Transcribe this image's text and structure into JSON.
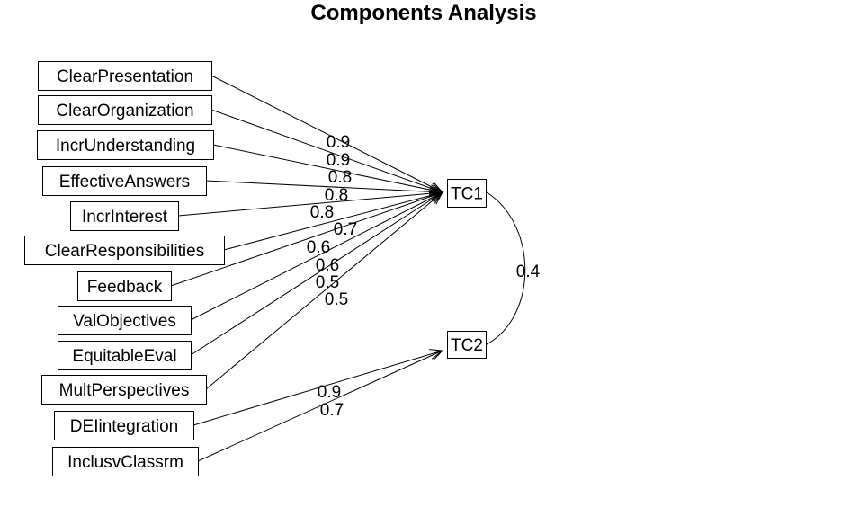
{
  "title": "Components Analysis",
  "components": [
    {
      "id": "TC1",
      "label": "TC1"
    },
    {
      "id": "TC2",
      "label": "TC2"
    }
  ],
  "variables": [
    {
      "label": "ClearPresentation",
      "component": "TC1",
      "loading": "0.9"
    },
    {
      "label": "ClearOrganization",
      "component": "TC1",
      "loading": "0.9"
    },
    {
      "label": "IncrUnderstanding",
      "component": "TC1",
      "loading": "0.8"
    },
    {
      "label": "EffectiveAnswers",
      "component": "TC1",
      "loading": "0.8"
    },
    {
      "label": "IncrInterest",
      "component": "TC1",
      "loading": "0.8"
    },
    {
      "label": "ClearResponsibilities",
      "component": "TC1",
      "loading": "0.7"
    },
    {
      "label": "Feedback",
      "component": "TC1",
      "loading": "0.6"
    },
    {
      "label": "ValObjectives",
      "component": "TC1",
      "loading": "0.6"
    },
    {
      "label": "EquitableEval",
      "component": "TC1",
      "loading": "0.5"
    },
    {
      "label": "MultPerspectives",
      "component": "TC1",
      "loading": "0.5"
    },
    {
      "label": "DEIintegration",
      "component": "TC2",
      "loading": "0.9"
    },
    {
      "label": "InclusvClassrm",
      "component": "TC2",
      "loading": "0.7"
    }
  ],
  "correlation": {
    "from": "TC1",
    "to": "TC2",
    "value": "0.4"
  }
}
